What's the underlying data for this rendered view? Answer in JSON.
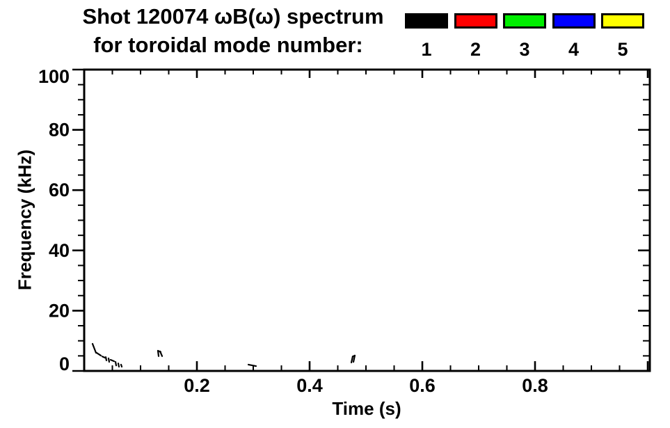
{
  "figure": {
    "background": "#ffffff",
    "foreground": "#000000"
  },
  "chart_data": {
    "type": "scatter",
    "title": "Shot 120074 ωB(ω) spectrum",
    "subtitle": "for toroidal mode number:",
    "xlabel": "Time (s)",
    "ylabel": "Frequency (kHz)",
    "xlim": [
      0,
      1.0037
    ],
    "ylim": [
      0,
      100
    ],
    "grid": false,
    "x_major_ticks": [
      {
        "value": 0.2,
        "label": "0.2"
      },
      {
        "value": 0.4,
        "label": "0.4"
      },
      {
        "value": 0.6,
        "label": "0.6"
      },
      {
        "value": 0.8,
        "label": "0.8"
      },
      {
        "value": 1.0,
        "label": ""
      }
    ],
    "x_minor_step": 0.05,
    "y_major_ticks": [
      {
        "value": 0,
        "label": "0"
      },
      {
        "value": 20,
        "label": "20"
      },
      {
        "value": 40,
        "label": "40"
      },
      {
        "value": 60,
        "label": "60"
      },
      {
        "value": 80,
        "label": "80"
      },
      {
        "value": 100,
        "label": "100"
      }
    ],
    "y_minor_step": 5,
    "legend": {
      "position": "top-right",
      "title": "toroidal mode number",
      "items": [
        {
          "label": "1",
          "color": "#000000"
        },
        {
          "label": "2",
          "color": "#ff0000"
        },
        {
          "label": "3",
          "color": "#00ee00"
        },
        {
          "label": "4",
          "color": "#0000ff"
        },
        {
          "label": "5",
          "color": "#ffff00"
        }
      ]
    },
    "series": [
      {
        "name": "mode 1",
        "color": "#000000",
        "style": "short line segments (time s, frequency kHz)",
        "segments": [
          [
            0.0148,
            9.0,
            0.021,
            6.0
          ],
          [
            0.0222,
            6.0,
            0.0296,
            5.1
          ],
          [
            0.0321,
            4.8,
            0.037,
            4.4
          ],
          [
            0.0383,
            4.6,
            0.0395,
            3.5
          ],
          [
            0.0432,
            4.2,
            0.0444,
            3.0
          ],
          [
            0.0469,
            3.7,
            0.0531,
            3.2
          ],
          [
            0.0556,
            3.0,
            0.0568,
            1.8
          ],
          [
            0.0605,
            2.5,
            0.0617,
            1.4
          ],
          [
            0.0654,
            2.1,
            0.0667,
            1.4
          ],
          [
            0.1309,
            6.7,
            0.1321,
            4.9
          ],
          [
            0.1309,
            6.7,
            0.1358,
            6.3
          ],
          [
            0.1346,
            6.5,
            0.1383,
            4.9
          ],
          [
            0.2914,
            2.1,
            0.3049,
            1.6
          ],
          [
            0.4741,
            2.8,
            0.4765,
            4.8
          ],
          [
            0.4765,
            4.8,
            0.4802,
            5.1
          ],
          [
            0.4778,
            3.0,
            0.4802,
            5.1
          ]
        ]
      },
      {
        "name": "mode 2",
        "color": "#ff0000",
        "segments": []
      },
      {
        "name": "mode 3",
        "color": "#00ee00",
        "segments": []
      },
      {
        "name": "mode 4",
        "color": "#0000ff",
        "segments": []
      },
      {
        "name": "mode 5",
        "color": "#ffff00",
        "segments": []
      }
    ]
  }
}
